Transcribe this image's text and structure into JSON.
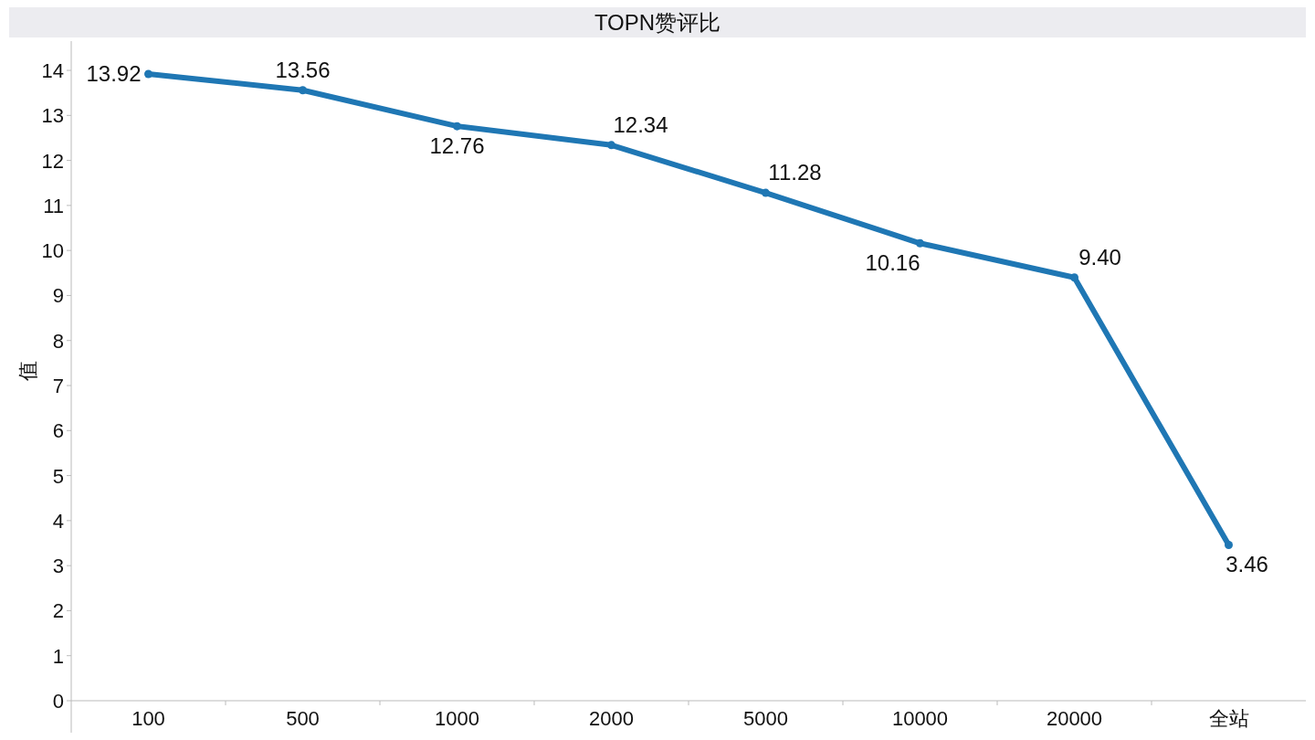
{
  "chart_data": {
    "type": "line",
    "title": "TOPN赞评比",
    "ylabel": "值",
    "categories": [
      "100",
      "500",
      "1000",
      "2000",
      "5000",
      "10000",
      "20000",
      "全站"
    ],
    "series": [
      {
        "color": "#1f77b4",
        "values": [
          13.92,
          13.56,
          12.76,
          12.34,
          11.28,
          10.16,
          9.4,
          3.46
        ],
        "value_labels": [
          "13.92",
          "13.56",
          "12.76",
          "12.34",
          "11.28",
          "10.16",
          "9.40",
          "3.46"
        ]
      }
    ],
    "ylim": [
      0,
      14.65
    ],
    "yticks": [
      0,
      1,
      2,
      3,
      4,
      5,
      6,
      7,
      8,
      9,
      10,
      11,
      12,
      13,
      14
    ],
    "marker": "circle",
    "grid": false
  }
}
